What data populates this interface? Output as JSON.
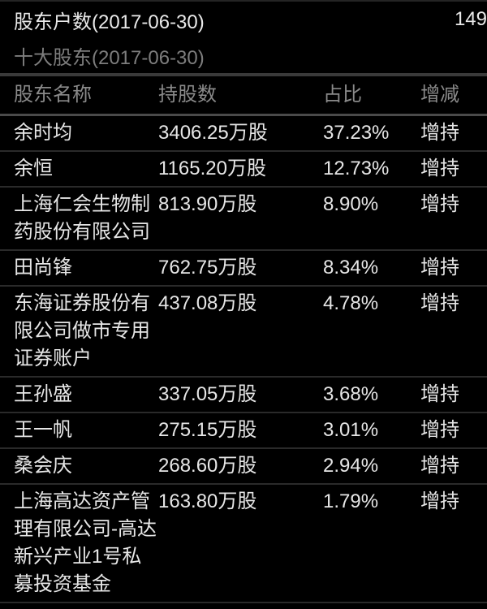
{
  "summary": {
    "label": "股东户数(2017-06-30)",
    "value": "149"
  },
  "section": {
    "title": "十大股东(2017-06-30)"
  },
  "table": {
    "columns": [
      "股东名称",
      "持股数",
      "占比",
      "增减"
    ],
    "rows": [
      {
        "name": "余时均",
        "shares": "3406.25万股",
        "ratio": "37.23%",
        "change": "增持"
      },
      {
        "name": "余恒",
        "shares": "1165.20万股",
        "ratio": "12.73%",
        "change": "增持"
      },
      {
        "name": "上海仁会生物制药股份有限公司",
        "shares": "813.90万股",
        "ratio": "8.90%",
        "change": "增持"
      },
      {
        "name": "田尚锋",
        "shares": "762.75万股",
        "ratio": "8.34%",
        "change": "增持"
      },
      {
        "name": "东海证券股份有限公司做市专用证券账户",
        "shares": "437.08万股",
        "ratio": "4.78%",
        "change": "增持"
      },
      {
        "name": "王孙盛",
        "shares": "337.05万股",
        "ratio": "3.68%",
        "change": "增持"
      },
      {
        "name": "王一帆",
        "shares": "275.15万股",
        "ratio": "3.01%",
        "change": "增持"
      },
      {
        "name": "桑会庆",
        "shares": "268.60万股",
        "ratio": "2.94%",
        "change": "增持"
      },
      {
        "name": "上海高达资产管理有限公司-高达新兴产业1号私募投资基金",
        "shares": "163.80万股",
        "ratio": "1.79%",
        "change": "增持"
      }
    ]
  },
  "colors": {
    "background": "#000000",
    "primary_text": "#e9e9e9",
    "secondary_text": "#8a8a8a",
    "divider": "#2a2a2a",
    "section_divider": "#3a3a3a"
  }
}
